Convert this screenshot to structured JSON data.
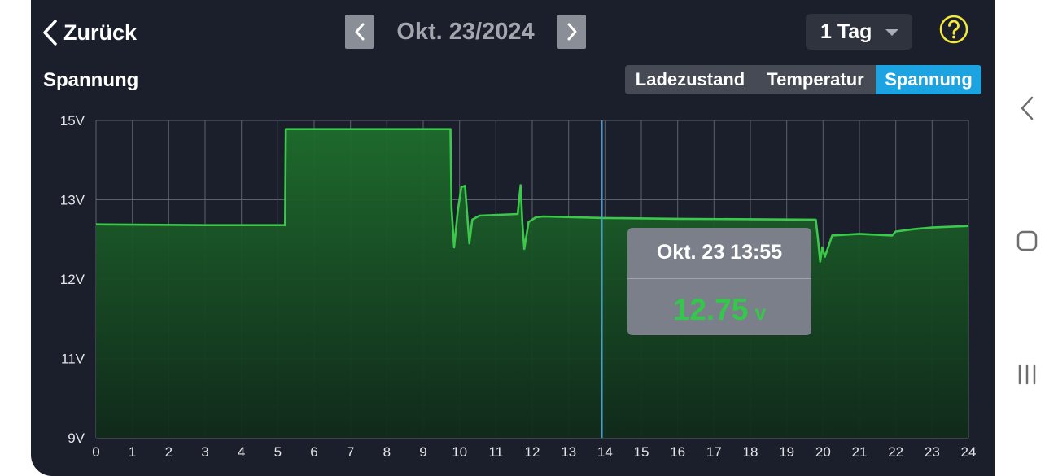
{
  "header": {
    "back_label": "Zurück",
    "date": "Okt. 23/2024",
    "range": "1 Tag"
  },
  "section_title": "Spannung",
  "tabs": [
    {
      "label": "Ladezustand",
      "active": false
    },
    {
      "label": "Temperatur",
      "active": false
    },
    {
      "label": "Spannung",
      "active": true
    }
  ],
  "tooltip": {
    "timestamp": "Okt. 23 13:55",
    "value": "12.75",
    "unit": "v"
  },
  "colors": {
    "background": "#1b1f2b",
    "line": "#3cc84a",
    "fill": "#1f6b2c",
    "accent": "#1ba3e2",
    "help": "#f4e83a",
    "cursor": "#3a9fe0"
  },
  "chart_data": {
    "type": "area",
    "x_unit": "hour",
    "xlim": [
      0,
      24
    ],
    "xticks": [
      "0",
      "1",
      "2",
      "3",
      "4",
      "5",
      "6",
      "7",
      "8",
      "9",
      "10",
      "11",
      "12",
      "13",
      "14",
      "15",
      "16",
      "17",
      "18",
      "19",
      "20",
      "21",
      "22",
      "23",
      "24"
    ],
    "yticks": [
      "15V",
      "13V",
      "12V",
      "11V",
      "9V"
    ],
    "ytick_values": [
      15,
      13,
      12,
      11,
      9
    ],
    "grid": true,
    "cursor_x": 13.92,
    "series": [
      {
        "points": [
          [
            0,
            12.69
          ],
          [
            3,
            12.68
          ],
          [
            5.2,
            12.68
          ],
          [
            5.22,
            14.78
          ],
          [
            9.75,
            14.78
          ],
          [
            9.78,
            12.9
          ],
          [
            9.85,
            12.4
          ],
          [
            9.95,
            12.85
          ],
          [
            10.05,
            13.32
          ],
          [
            10.15,
            13.35
          ],
          [
            10.22,
            12.75
          ],
          [
            10.27,
            12.45
          ],
          [
            10.35,
            12.75
          ],
          [
            10.55,
            12.8
          ],
          [
            11.6,
            12.82
          ],
          [
            11.68,
            13.37
          ],
          [
            11.73,
            12.7
          ],
          [
            11.78,
            12.38
          ],
          [
            11.9,
            12.72
          ],
          [
            12.1,
            12.78
          ],
          [
            12.3,
            12.79
          ],
          [
            14,
            12.77
          ],
          [
            16,
            12.76
          ],
          [
            19.8,
            12.75
          ],
          [
            19.85,
            12.55
          ],
          [
            19.92,
            12.22
          ],
          [
            19.98,
            12.4
          ],
          [
            20.05,
            12.28
          ],
          [
            20.25,
            12.55
          ],
          [
            21,
            12.57
          ],
          [
            21.9,
            12.55
          ],
          [
            22,
            12.6
          ],
          [
            22.5,
            12.63
          ],
          [
            23,
            12.65
          ],
          [
            24,
            12.67
          ]
        ]
      }
    ]
  }
}
